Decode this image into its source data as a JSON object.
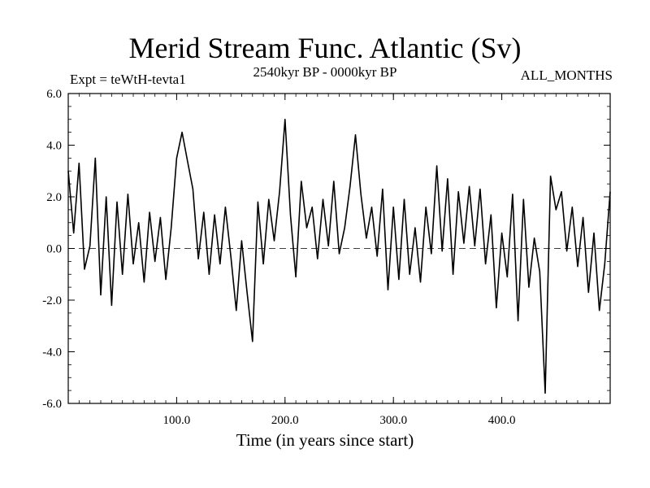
{
  "chart_data": {
    "type": "line",
    "title": "Merid Stream Func. Atlantic (Sv)",
    "subtitle": "2540kyr BP - 0000kyr BP",
    "experiment": "Expt = teWtH-tevta1",
    "period": "ALL_MONTHS",
    "xlabel": "Time (in years since start)",
    "ylabel": "",
    "xlim": [
      0,
      500
    ],
    "ylim": [
      -6,
      6
    ],
    "xticks": [
      100,
      200,
      300,
      400
    ],
    "xtick_labels": [
      "100.0",
      "200.0",
      "300.0",
      "400.0"
    ],
    "yticks": [
      -6,
      -4,
      -2,
      0,
      2,
      4,
      6
    ],
    "ytick_labels": [
      "-6.0",
      "-4.0",
      "-2.0",
      "0.0",
      "2.0",
      "4.0",
      "6.0"
    ],
    "reference_line": 0,
    "series": [
      {
        "name": "Atlantic meridional stream function",
        "x": [
          0,
          5,
          10,
          15,
          20,
          25,
          30,
          35,
          40,
          45,
          50,
          55,
          60,
          65,
          70,
          75,
          80,
          85,
          90,
          95,
          100,
          105,
          110,
          115,
          120,
          125,
          130,
          135,
          140,
          145,
          150,
          155,
          160,
          165,
          170,
          175,
          180,
          185,
          190,
          195,
          200,
          205,
          210,
          215,
          220,
          225,
          230,
          235,
          240,
          245,
          250,
          255,
          260,
          265,
          270,
          275,
          280,
          285,
          290,
          295,
          300,
          305,
          310,
          315,
          320,
          325,
          330,
          335,
          340,
          345,
          350,
          355,
          360,
          365,
          370,
          375,
          380,
          385,
          390,
          395,
          400,
          405,
          410,
          415,
          420,
          425,
          430,
          435,
          440,
          445,
          450,
          455,
          460,
          465,
          470,
          475,
          480,
          485,
          490,
          495,
          500
        ],
        "values": [
          3.0,
          0.6,
          3.3,
          -0.8,
          0.1,
          3.5,
          -1.8,
          2.0,
          -2.2,
          1.8,
          -1.0,
          2.1,
          -0.6,
          1.0,
          -1.3,
          1.4,
          -0.5,
          1.2,
          -1.2,
          0.8,
          3.5,
          4.5,
          3.4,
          2.3,
          -0.4,
          1.4,
          -1.0,
          1.3,
          -0.6,
          1.6,
          -0.3,
          -2.4,
          0.3,
          -1.7,
          -3.6,
          1.8,
          -0.6,
          1.9,
          0.3,
          2.2,
          5.0,
          1.3,
          -1.1,
          2.6,
          0.8,
          1.6,
          -0.4,
          1.9,
          0.1,
          2.6,
          -0.2,
          0.8,
          2.4,
          4.4,
          2.1,
          0.4,
          1.6,
          -0.3,
          2.3,
          -1.6,
          1.6,
          -1.2,
          1.9,
          -1.0,
          0.8,
          -1.3,
          1.6,
          -0.2,
          3.2,
          -0.1,
          2.7,
          -1.0,
          2.2,
          0.2,
          2.4,
          0.1,
          2.3,
          -0.6,
          1.3,
          -2.3,
          0.6,
          -1.1,
          2.1,
          -2.8,
          1.9,
          -1.5,
          0.4,
          -0.9,
          -5.6,
          2.8,
          1.5,
          2.2,
          -0.1,
          1.6,
          -0.7,
          1.2,
          -1.7,
          0.6,
          -2.4,
          -0.6,
          2.2
        ]
      }
    ]
  }
}
